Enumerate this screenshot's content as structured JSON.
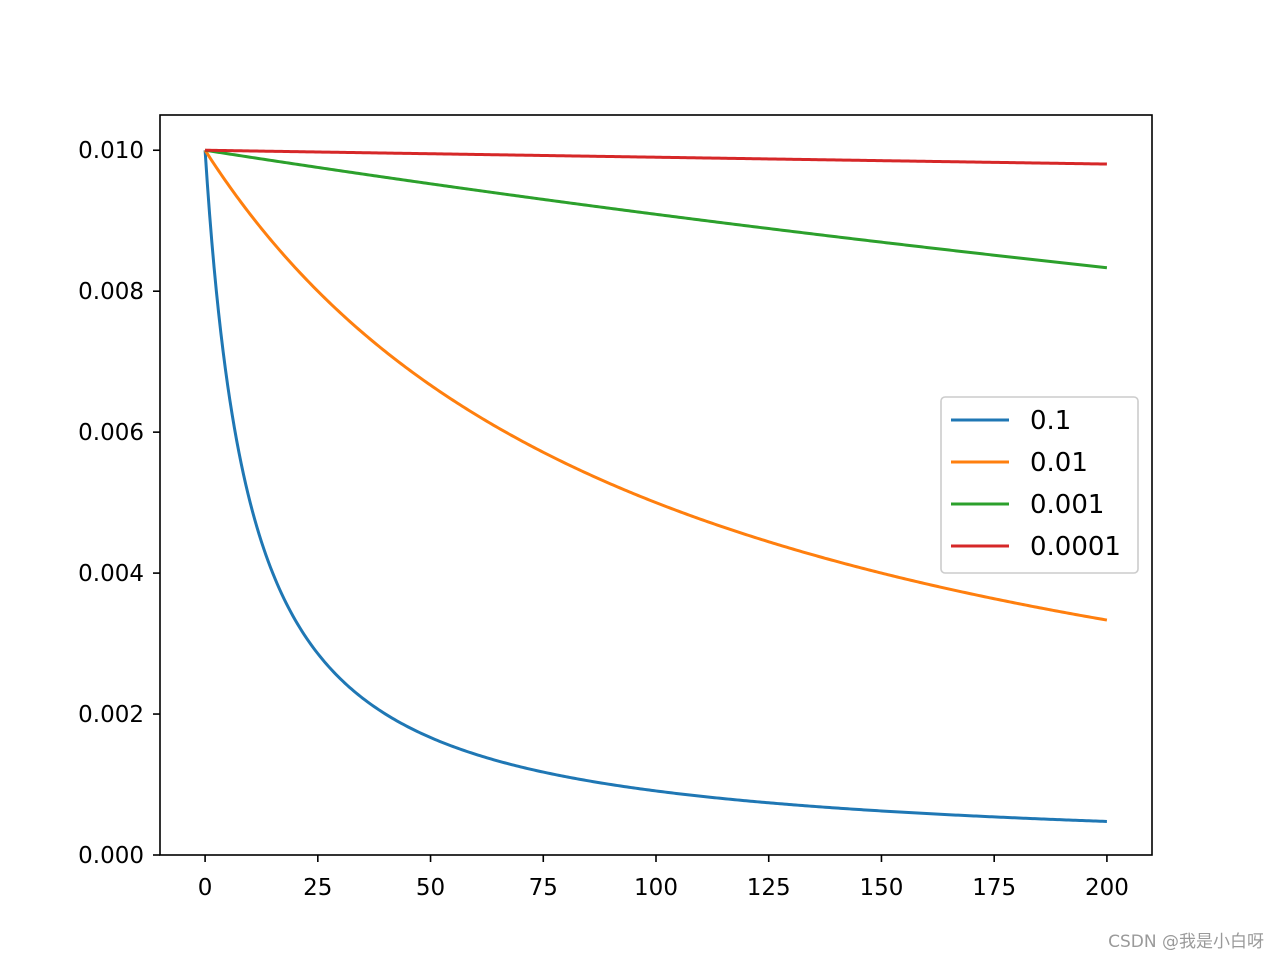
{
  "chart_data": {
    "type": "line",
    "title": "",
    "xlabel": "",
    "ylabel": "",
    "xlim": [
      -10,
      210
    ],
    "ylim": [
      0.0,
      0.0105
    ],
    "x_ticks": [
      "0",
      "25",
      "50",
      "75",
      "100",
      "125",
      "150",
      "175",
      "200"
    ],
    "y_ticks": [
      "0.000",
      "0.002",
      "0.004",
      "0.006",
      "0.008",
      "0.010"
    ],
    "legend_position": "center-right",
    "model": "y = 0.01 / (1 + k * x)",
    "x_range": [
      0,
      200
    ],
    "series": [
      {
        "name": "0.1",
        "k": 0.1,
        "color": "#1f77b4",
        "sample_x": [
          0,
          25,
          50,
          100,
          150,
          200
        ],
        "sample_y": [
          0.01,
          0.002857,
          0.001667,
          0.000909,
          0.000625,
          0.000476
        ]
      },
      {
        "name": "0.01",
        "k": 0.01,
        "color": "#ff7f0e",
        "sample_x": [
          0,
          25,
          50,
          100,
          150,
          200
        ],
        "sample_y": [
          0.01,
          0.008,
          0.006667,
          0.005,
          0.004,
          0.003333
        ]
      },
      {
        "name": "0.001",
        "k": 0.001,
        "color": "#2ca02c",
        "sample_x": [
          0,
          100,
          200
        ],
        "sample_y": [
          0.01,
          0.009091,
          0.008333
        ]
      },
      {
        "name": "0.0001",
        "k": 0.0001,
        "color": "#d62728",
        "sample_x": [
          0,
          100,
          200
        ],
        "sample_y": [
          0.01,
          0.009901,
          0.009804
        ]
      }
    ]
  },
  "watermark": "CSDN @我是小白呀"
}
